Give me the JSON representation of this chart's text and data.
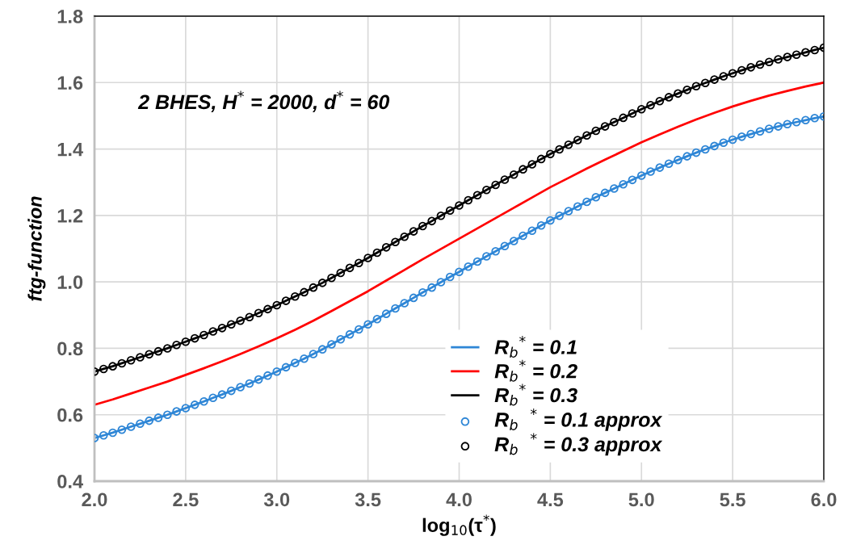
{
  "chart_data": {
    "type": "line",
    "xlabel": "log$_{10}$(τ$^{*}$)",
    "ylabel": "ftg-function",
    "annotations": [
      "2 BHES, H$^{*}$ = 2000, d$^{*}$ = 60"
    ],
    "x": [
      2.0,
      2.05,
      2.1,
      2.15,
      2.2,
      2.25,
      2.3,
      2.35,
      2.4,
      2.45,
      2.5,
      2.55,
      2.6,
      2.65,
      2.7,
      2.75,
      2.8,
      2.85,
      2.9,
      2.95,
      3.0,
      3.05,
      3.1,
      3.15,
      3.2,
      3.25,
      3.3,
      3.35,
      3.4,
      3.45,
      3.5,
      3.55,
      3.6,
      3.65,
      3.7,
      3.75,
      3.8,
      3.85,
      3.9,
      3.95,
      4.0,
      4.05,
      4.1,
      4.15,
      4.2,
      4.25,
      4.3,
      4.35,
      4.4,
      4.45,
      4.5,
      4.55,
      4.6,
      4.65,
      4.7,
      4.75,
      4.8,
      4.85,
      4.9,
      4.95,
      5.0,
      5.05,
      5.1,
      5.15,
      5.2,
      5.25,
      5.3,
      5.35,
      5.4,
      5.45,
      5.5,
      5.55,
      5.6,
      5.65,
      5.7,
      5.75,
      5.8,
      5.85,
      5.9,
      5.95,
      6.0
    ],
    "series": [
      {
        "name": "R$_{b}$$^{*}$ = 0.1",
        "marker": "none",
        "color": "#2e86d6",
        "values": [
          0.53,
          0.538,
          0.546,
          0.555,
          0.564,
          0.573,
          0.582,
          0.591,
          0.6,
          0.61,
          0.62,
          0.63,
          0.64,
          0.651,
          0.661,
          0.672,
          0.683,
          0.694,
          0.706,
          0.718,
          0.73,
          0.743,
          0.756,
          0.769,
          0.783,
          0.797,
          0.812,
          0.827,
          0.842,
          0.857,
          0.872,
          0.888,
          0.904,
          0.92,
          0.936,
          0.952,
          0.968,
          0.983,
          0.999,
          1.015,
          1.03,
          1.046,
          1.061,
          1.077,
          1.092,
          1.108,
          1.123,
          1.139,
          1.154,
          1.17,
          1.185,
          1.199,
          1.213,
          1.227,
          1.241,
          1.255,
          1.268,
          1.281,
          1.294,
          1.307,
          1.32,
          1.332,
          1.344,
          1.356,
          1.367,
          1.378,
          1.389,
          1.399,
          1.409,
          1.419,
          1.428,
          1.437,
          1.445,
          1.453,
          1.461,
          1.468,
          1.475,
          1.481,
          1.487,
          1.493,
          1.498
        ]
      },
      {
        "name": "R$_{b}$$^{*}$ = 0.2",
        "marker": "none",
        "color": "#ff0000",
        "x": [
          2.0,
          2.1,
          2.2,
          2.3,
          2.4,
          2.5,
          2.6,
          2.7,
          2.8,
          2.9,
          3.0,
          3.1,
          3.2,
          3.3,
          3.4,
          3.5,
          3.6,
          3.7,
          3.8,
          3.9,
          4.0,
          4.1,
          4.2,
          4.3,
          4.4,
          4.5,
          4.6,
          4.7,
          4.8,
          4.9,
          5.0,
          5.1,
          5.2,
          5.3,
          5.4,
          5.5,
          5.6,
          5.7,
          5.8,
          5.9,
          6.0
        ],
        "values": [
          0.63,
          0.646,
          0.664,
          0.682,
          0.7,
          0.72,
          0.74,
          0.761,
          0.783,
          0.806,
          0.83,
          0.856,
          0.883,
          0.912,
          0.942,
          0.972,
          1.004,
          1.036,
          1.068,
          1.099,
          1.13,
          1.161,
          1.192,
          1.223,
          1.254,
          1.285,
          1.313,
          1.341,
          1.368,
          1.394,
          1.42,
          1.444,
          1.467,
          1.489,
          1.509,
          1.528,
          1.545,
          1.561,
          1.575,
          1.588,
          1.6
        ]
      },
      {
        "name": "R$_{b}$$^{*}$ = 0.3",
        "marker": "none",
        "color": "#000000",
        "values": [
          0.73,
          0.738,
          0.746,
          0.755,
          0.764,
          0.773,
          0.782,
          0.791,
          0.8,
          0.81,
          0.82,
          0.83,
          0.84,
          0.851,
          0.861,
          0.872,
          0.883,
          0.894,
          0.906,
          0.918,
          0.93,
          0.943,
          0.956,
          0.969,
          0.983,
          0.997,
          1.012,
          1.027,
          1.042,
          1.057,
          1.072,
          1.088,
          1.104,
          1.12,
          1.136,
          1.152,
          1.168,
          1.183,
          1.199,
          1.215,
          1.23,
          1.246,
          1.261,
          1.277,
          1.292,
          1.308,
          1.323,
          1.339,
          1.354,
          1.37,
          1.385,
          1.399,
          1.413,
          1.427,
          1.441,
          1.455,
          1.468,
          1.481,
          1.494,
          1.507,
          1.52,
          1.532,
          1.544,
          1.556,
          1.567,
          1.578,
          1.589,
          1.599,
          1.609,
          1.619,
          1.628,
          1.637,
          1.646,
          1.654,
          1.662,
          1.67,
          1.677,
          1.684,
          1.691,
          1.698,
          1.705
        ]
      },
      {
        "name": "R$_{b}$  $^{*}$ = 0.1 approx",
        "type": "scatter",
        "marker": "circle",
        "color": "#2e86d6",
        "values": [
          0.53,
          0.538,
          0.546,
          0.555,
          0.564,
          0.573,
          0.582,
          0.591,
          0.6,
          0.61,
          0.62,
          0.63,
          0.64,
          0.651,
          0.661,
          0.672,
          0.683,
          0.694,
          0.706,
          0.718,
          0.73,
          0.743,
          0.756,
          0.769,
          0.783,
          0.797,
          0.812,
          0.827,
          0.842,
          0.857,
          0.872,
          0.888,
          0.904,
          0.92,
          0.936,
          0.952,
          0.968,
          0.983,
          0.999,
          1.015,
          1.03,
          1.046,
          1.061,
          1.077,
          1.092,
          1.108,
          1.123,
          1.139,
          1.154,
          1.17,
          1.185,
          1.199,
          1.213,
          1.227,
          1.241,
          1.255,
          1.268,
          1.281,
          1.294,
          1.307,
          1.32,
          1.332,
          1.344,
          1.356,
          1.367,
          1.378,
          1.389,
          1.399,
          1.409,
          1.419,
          1.428,
          1.437,
          1.445,
          1.453,
          1.461,
          1.468,
          1.475,
          1.481,
          1.487,
          1.493,
          1.498
        ]
      },
      {
        "name": "R$_{b}$  $^{*}$ = 0.3 approx",
        "type": "scatter",
        "marker": "circle",
        "color": "#000000",
        "values": [
          0.73,
          0.738,
          0.746,
          0.755,
          0.764,
          0.773,
          0.782,
          0.791,
          0.8,
          0.81,
          0.82,
          0.83,
          0.84,
          0.851,
          0.861,
          0.872,
          0.883,
          0.894,
          0.906,
          0.918,
          0.93,
          0.943,
          0.956,
          0.969,
          0.983,
          0.997,
          1.012,
          1.027,
          1.042,
          1.057,
          1.072,
          1.088,
          1.104,
          1.12,
          1.136,
          1.152,
          1.168,
          1.183,
          1.199,
          1.215,
          1.23,
          1.246,
          1.261,
          1.277,
          1.292,
          1.308,
          1.323,
          1.339,
          1.354,
          1.37,
          1.385,
          1.399,
          1.413,
          1.427,
          1.441,
          1.455,
          1.468,
          1.481,
          1.494,
          1.507,
          1.52,
          1.532,
          1.544,
          1.556,
          1.567,
          1.578,
          1.589,
          1.599,
          1.609,
          1.619,
          1.628,
          1.637,
          1.646,
          1.654,
          1.662,
          1.67,
          1.677,
          1.684,
          1.691,
          1.698,
          1.705
        ]
      }
    ],
    "xlim": [
      2.0,
      6.0
    ],
    "ylim": [
      0.4,
      1.8
    ],
    "xticks": [
      {
        "value": 2.0,
        "label": "2.0"
      },
      {
        "value": 2.5,
        "label": "2.5"
      },
      {
        "value": 3.0,
        "label": "3.0"
      },
      {
        "value": 3.5,
        "label": "3.5"
      },
      {
        "value": 4.0,
        "label": "4.0"
      },
      {
        "value": 4.5,
        "label": "4.5"
      },
      {
        "value": 5.0,
        "label": "5.0"
      },
      {
        "value": 5.5,
        "label": "5.5"
      },
      {
        "value": 6.0,
        "label": "6.0"
      }
    ],
    "yticks": [
      0.4,
      0.6,
      0.8,
      {
        "value": 1.0,
        "label": "1.0"
      },
      1.2,
      1.4,
      1.6,
      1.8
    ],
    "grid": true,
    "legend": "bottom right",
    "line_style": "solid"
  }
}
